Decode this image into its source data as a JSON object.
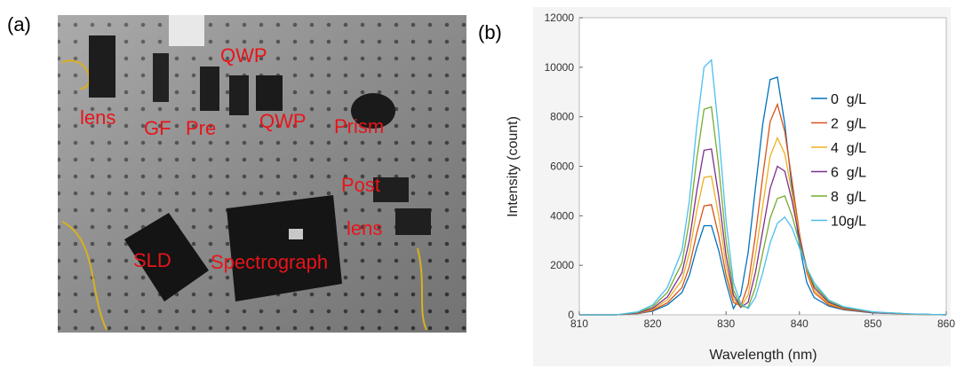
{
  "panel_labels": [
    "(a)",
    "(b)"
  ],
  "photo": {
    "labels": [
      "lens",
      "GF",
      "Pre",
      "QWP",
      "QWP",
      "Prism",
      "Post",
      "lens",
      "SLD",
      "Spectrograph"
    ]
  },
  "chart_data": {
    "type": "line",
    "xlabel": "Wavelength (nm)",
    "ylabel": "Intensity (count)",
    "x": [
      810,
      815,
      818,
      820,
      822,
      824,
      825,
      826,
      827,
      828,
      829,
      830,
      831,
      832,
      833,
      834,
      835,
      836,
      837,
      838,
      839,
      840,
      841,
      842,
      844,
      846,
      850,
      855,
      860
    ],
    "series": [
      {
        "name": "0  g/L",
        "color": "#0072bd",
        "values": [
          0,
          0,
          50,
          150,
          400,
          900,
          1600,
          2700,
          3600,
          3600,
          2600,
          1300,
          250,
          800,
          2500,
          5100,
          7700,
          9500,
          9600,
          7700,
          5100,
          2800,
          1300,
          700,
          350,
          200,
          80,
          30,
          0
        ]
      },
      {
        "name": "2  g/L",
        "color": "#d95319",
        "values": [
          0,
          0,
          60,
          180,
          480,
          1100,
          1950,
          3300,
          4400,
          4450,
          3200,
          1600,
          500,
          350,
          1200,
          3200,
          5600,
          7800,
          8500,
          7400,
          5400,
          3300,
          1700,
          900,
          400,
          220,
          90,
          30,
          0
        ]
      },
      {
        "name": "4  g/L",
        "color": "#edb120",
        "values": [
          0,
          0,
          70,
          220,
          600,
          1400,
          2500,
          4200,
          5550,
          5600,
          4000,
          2000,
          650,
          300,
          800,
          2400,
          4400,
          6400,
          7150,
          6500,
          4900,
          3200,
          1800,
          1000,
          450,
          250,
          100,
          30,
          0
        ]
      },
      {
        "name": "6  g/L",
        "color": "#7e2f8e",
        "values": [
          0,
          0,
          80,
          260,
          720,
          1700,
          3000,
          5000,
          6650,
          6700,
          4800,
          2400,
          800,
          300,
          500,
          1700,
          3400,
          5100,
          6000,
          5800,
          4600,
          3100,
          1900,
          1100,
          500,
          270,
          100,
          35,
          0
        ]
      },
      {
        "name": "8  g/L",
        "color": "#77ac30",
        "values": [
          0,
          0,
          100,
          330,
          900,
          2100,
          3800,
          6300,
          8300,
          8400,
          6000,
          3000,
          1000,
          350,
          300,
          1100,
          2500,
          3900,
          4700,
          4800,
          4000,
          2900,
          1900,
          1200,
          550,
          300,
          110,
          35,
          0
        ]
      },
      {
        "name": "10g/L",
        "color": "#4dbeee",
        "values": [
          0,
          0,
          120,
          400,
          1100,
          2600,
          4600,
          7600,
          10000,
          10300,
          7400,
          3800,
          1300,
          450,
          250,
          700,
          1700,
          2900,
          3700,
          3950,
          3500,
          2700,
          1900,
          1300,
          600,
          330,
          120,
          40,
          0
        ]
      }
    ],
    "xlim": [
      810,
      860
    ],
    "ylim": [
      0,
      12000
    ],
    "xticks": [
      810,
      820,
      830,
      840,
      850,
      860
    ],
    "yticks": [
      0,
      2000,
      4000,
      6000,
      8000,
      10000,
      12000
    ],
    "grid": false
  }
}
